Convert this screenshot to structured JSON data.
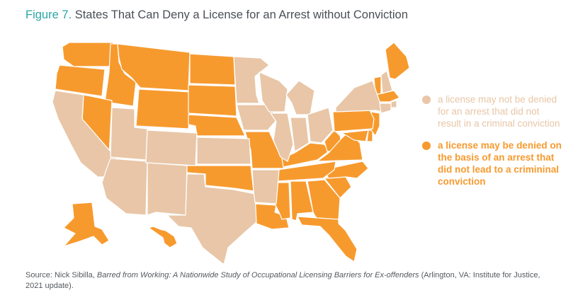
{
  "figure": {
    "label": "Figure 7.",
    "title": "States That Can Deny a License for an Arrest without Conviction"
  },
  "colors": {
    "deny": "#f79a2e",
    "no_deny": "#e8c6a7",
    "title_accent": "#2aa6a6",
    "text": "#4a4f55"
  },
  "legend": {
    "no_deny_label": "a license may not be denied for an arrest that did not result in a criminal conviction",
    "deny_label": "a license may be denied on the basis of an arrest that did not lead to a crimininal conviction"
  },
  "map_data": {
    "deny_states": [
      "WA",
      "OR",
      "ID",
      "MT",
      "WY",
      "ND",
      "SD",
      "NE",
      "NV",
      "OK",
      "MO",
      "LA",
      "MS",
      "AL",
      "GA",
      "FL",
      "SC",
      "NC",
      "TN",
      "KY",
      "WV",
      "VA",
      "MD",
      "DE",
      "NJ",
      "PA",
      "VT",
      "ME",
      "MA",
      "AK",
      "HI"
    ],
    "no_deny_states": [
      "CA",
      "AZ",
      "UT",
      "CO",
      "NM",
      "TX",
      "KS",
      "MN",
      "IA",
      "WI",
      "IL",
      "AR",
      "MI",
      "IN",
      "OH",
      "NY",
      "NH",
      "CT",
      "RI"
    ]
  },
  "source": {
    "prefix": "Source: Nick Sibilla, ",
    "work": "Barred from Working: A Nationwide Study of Occupational Licensing Barriers for Ex-offenders",
    "suffix": " (Arlington, VA: Institute for Justice, 2021 update)."
  }
}
